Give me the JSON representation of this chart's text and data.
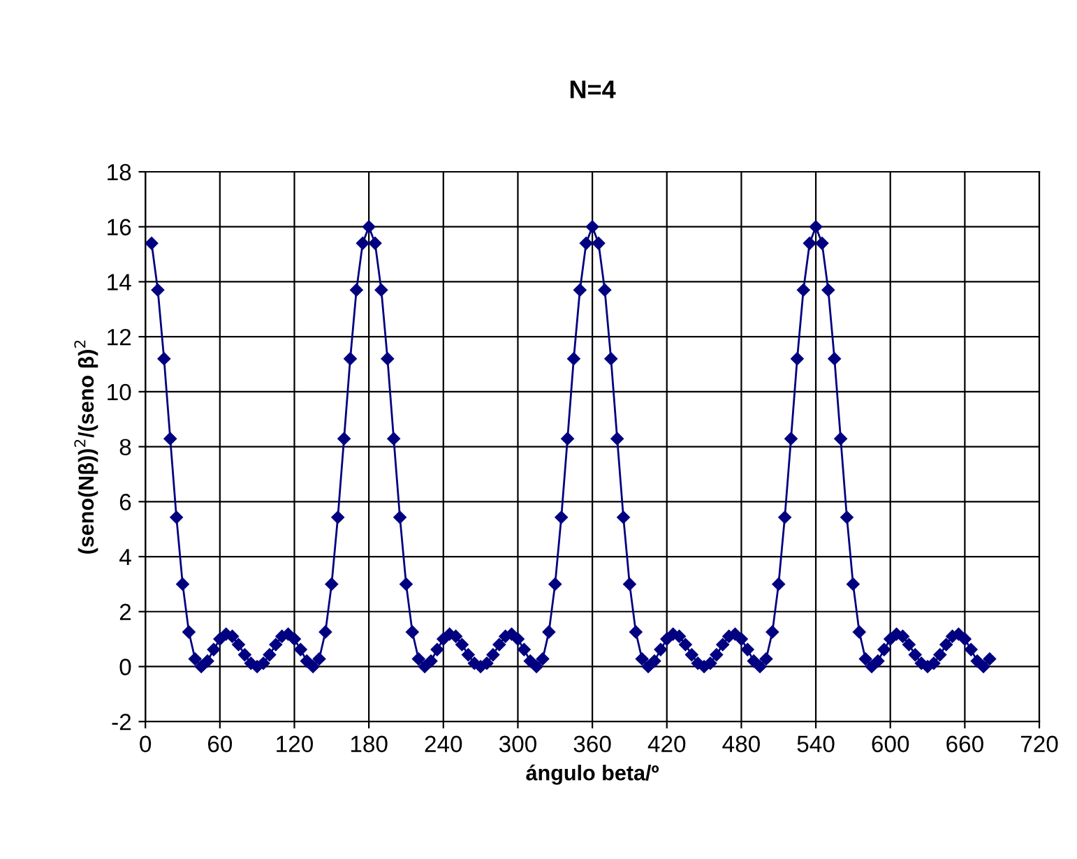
{
  "chart_data": {
    "type": "line",
    "title": "N=4",
    "xlabel": "ángulo beta/º",
    "ylabel": "(seno(Nβ))$^{2}$/(seno β)$^{2}$",
    "x": [
      5,
      10,
      15,
      20,
      25,
      30,
      35,
      40,
      45,
      50,
      55,
      60,
      65,
      70,
      75,
      80,
      85,
      90,
      95,
      100,
      105,
      110,
      115,
      120,
      125,
      130,
      135,
      140,
      145,
      150,
      155,
      160,
      165,
      170,
      175,
      180,
      185,
      190,
      195,
      200,
      205,
      210,
      215,
      220,
      225,
      230,
      235,
      240,
      245,
      250,
      255,
      260,
      265,
      270,
      275,
      280,
      285,
      290,
      295,
      300,
      305,
      310,
      315,
      320,
      325,
      330,
      335,
      340,
      345,
      350,
      355,
      360,
      365,
      370,
      375,
      380,
      385,
      390,
      395,
      400,
      405,
      410,
      415,
      420,
      425,
      430,
      435,
      440,
      445,
      450,
      455,
      460,
      465,
      470,
      475,
      480,
      485,
      490,
      495,
      500,
      505,
      510,
      515,
      520,
      525,
      530,
      535,
      540,
      545,
      550,
      555,
      560,
      565,
      570,
      575,
      580,
      585,
      590,
      595,
      600,
      605,
      610,
      615,
      620,
      625,
      630,
      635,
      640,
      645,
      650,
      655,
      660,
      665,
      670,
      675,
      680
    ],
    "series": [
      {
        "color": "#000080",
        "values": [
          15.4,
          13.7,
          11.2,
          8.29,
          5.43,
          3,
          1.26,
          0.28,
          0,
          0.2,
          0.62,
          1,
          1.18,
          1.1,
          0.8,
          0.43,
          0.12,
          0,
          0.12,
          0.43,
          0.8,
          1.1,
          1.18,
          1,
          0.62,
          0.2,
          0,
          0.28,
          1.26,
          3,
          5.43,
          8.29,
          11.2,
          13.7,
          15.4,
          16,
          15.4,
          13.7,
          11.2,
          8.29,
          5.43,
          3,
          1.26,
          0.28,
          0,
          0.2,
          0.62,
          1,
          1.18,
          1.1,
          0.8,
          0.43,
          0.12,
          0,
          0.12,
          0.43,
          0.8,
          1.1,
          1.18,
          1,
          0.62,
          0.2,
          0,
          0.28,
          1.26,
          3,
          5.43,
          8.29,
          11.2,
          13.7,
          15.4,
          16,
          15.4,
          13.7,
          11.2,
          8.29,
          5.43,
          3,
          1.26,
          0.28,
          0,
          0.2,
          0.62,
          1,
          1.18,
          1.1,
          0.8,
          0.43,
          0.12,
          0,
          0.12,
          0.43,
          0.8,
          1.1,
          1.18,
          1,
          0.62,
          0.2,
          0,
          0.28,
          1.26,
          3,
          5.43,
          8.29,
          11.2,
          13.7,
          15.4,
          16,
          15.4,
          13.7,
          11.2,
          8.29,
          5.43,
          3,
          1.26,
          0.28,
          0,
          0.2,
          0.62,
          1,
          1.18,
          1.1,
          0.8,
          0.43,
          0.12,
          0,
          0.12,
          0.43,
          0.8,
          1.1,
          1.18,
          1,
          0.62,
          0.2,
          0,
          0.28
        ]
      }
    ],
    "xlim": [
      0,
      720
    ],
    "xticks": [
      0,
      60,
      120,
      180,
      240,
      300,
      360,
      420,
      480,
      540,
      600,
      660,
      720
    ],
    "ylim": [
      -2,
      18
    ],
    "yticks": [
      -2,
      0,
      2,
      4,
      6,
      8,
      10,
      12,
      14,
      16,
      18
    ],
    "grid": true,
    "marker": "diamond",
    "line_style": "solid"
  }
}
